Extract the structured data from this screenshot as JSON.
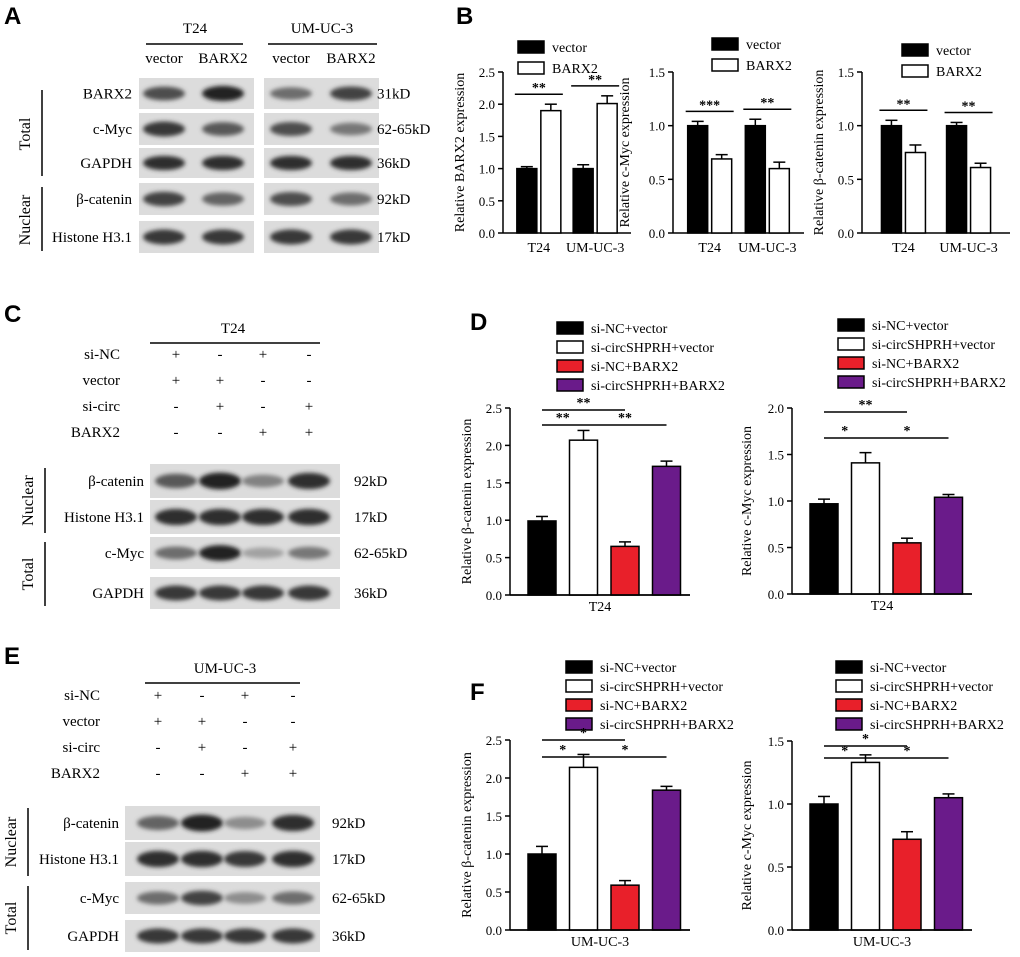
{
  "panels": {
    "A": {
      "letter": "A",
      "groups": [
        "T24",
        "UM-UC-3"
      ],
      "lanes": [
        "vector",
        "BARX2",
        "vector",
        "BARX2"
      ],
      "rows": [
        {
          "label": "BARX2",
          "size": "31kD",
          "intensity": [
            0.75,
            0.95,
            0.6,
            0.8
          ]
        },
        {
          "label": "c-Myc",
          "size": "62-65kD",
          "intensity": [
            0.85,
            0.7,
            0.75,
            0.55
          ]
        },
        {
          "label": "GAPDH",
          "size": "36kD",
          "intensity": [
            0.9,
            0.9,
            0.9,
            0.9
          ]
        },
        {
          "label": "β-catenin",
          "size": "92kD",
          "intensity": [
            0.8,
            0.65,
            0.75,
            0.6
          ]
        },
        {
          "label": "Histone H3.1",
          "size": "17kD",
          "intensity": [
            0.85,
            0.85,
            0.85,
            0.85
          ]
        }
      ],
      "side_labels": [
        "Total",
        "Nuclear"
      ]
    },
    "C": {
      "letter": "C",
      "group": "T24",
      "conditions": [
        {
          "label": "si-NC",
          "signs": [
            "+",
            "-",
            "+",
            "-"
          ]
        },
        {
          "label": "vector",
          "signs": [
            "+",
            "+",
            "-",
            "-"
          ]
        },
        {
          "label": "si-circ",
          "signs": [
            "-",
            "+",
            "-",
            "+"
          ]
        },
        {
          "label": "BARX2",
          "signs": [
            "-",
            "-",
            "+",
            "+"
          ]
        }
      ],
      "rows": [
        {
          "label": "β-catenin",
          "size": "92kD",
          "intensity": [
            0.7,
            0.95,
            0.5,
            0.9
          ]
        },
        {
          "label": "Histone H3.1",
          "size": "17kD",
          "intensity": [
            0.9,
            0.9,
            0.9,
            0.9
          ]
        },
        {
          "label": "c-Myc",
          "size": "62-65kD",
          "intensity": [
            0.6,
            0.95,
            0.35,
            0.55
          ]
        },
        {
          "label": "GAPDH",
          "size": "36kD",
          "intensity": [
            0.85,
            0.85,
            0.85,
            0.85
          ]
        }
      ],
      "side_labels": [
        "Nuclear",
        "Total"
      ]
    },
    "E": {
      "letter": "E",
      "group": "UM-UC-3",
      "conditions": [
        {
          "label": "si-NC",
          "signs": [
            "+",
            "-",
            "+",
            "-"
          ]
        },
        {
          "label": "vector",
          "signs": [
            "+",
            "+",
            "-",
            "-"
          ]
        },
        {
          "label": "si-circ",
          "signs": [
            "-",
            "+",
            "-",
            "+"
          ]
        },
        {
          "label": "BARX2",
          "signs": [
            "-",
            "-",
            "+",
            "+"
          ]
        }
      ],
      "rows": [
        {
          "label": "β-catenin",
          "size": "92kD",
          "intensity": [
            0.65,
            0.95,
            0.45,
            0.9
          ]
        },
        {
          "label": "Histone H3.1",
          "size": "17kD",
          "intensity": [
            0.9,
            0.9,
            0.85,
            0.9
          ]
        },
        {
          "label": "c-Myc",
          "size": "62-65kD",
          "intensity": [
            0.6,
            0.8,
            0.45,
            0.6
          ]
        },
        {
          "label": "GAPDH",
          "size": "36kD",
          "intensity": [
            0.85,
            0.85,
            0.85,
            0.85
          ]
        }
      ],
      "side_labels": [
        "Nuclear",
        "Total"
      ]
    },
    "B_letter": "B",
    "D_letter": "D",
    "F_letter": "F"
  },
  "colors": {
    "black": "#000000",
    "white": "#ffffff",
    "red": "#e8202a",
    "purple": "#6a1b8a"
  },
  "chart_data": [
    {
      "id": "B1",
      "type": "bar",
      "ylabel": "Relative BARX2 expression",
      "categories": [
        "T24",
        "UM-UC-3"
      ],
      "ylim": [
        0,
        2.5
      ],
      "yticks": [
        "0.0",
        "0.5",
        "1.0",
        "1.5",
        "2.0",
        "2.5"
      ],
      "series": [
        {
          "name": "vector",
          "values": [
            1.0,
            1.0
          ],
          "errors": [
            0.03,
            0.06
          ]
        },
        {
          "name": "BARX2",
          "values": [
            1.9,
            2.01
          ],
          "errors": [
            0.1,
            0.12
          ]
        }
      ],
      "significance": [
        {
          "text": "**"
        },
        {
          "text": "**"
        }
      ]
    },
    {
      "id": "B2",
      "type": "bar",
      "ylabel": "Relative c-Myc expression",
      "categories": [
        "T24",
        "UM-UC-3"
      ],
      "ylim": [
        0,
        1.5
      ],
      "yticks": [
        "0.0",
        "0.5",
        "1.0",
        "1.5"
      ],
      "series": [
        {
          "name": "vector",
          "values": [
            1.0,
            1.0
          ],
          "errors": [
            0.04,
            0.06
          ]
        },
        {
          "name": "BARX2",
          "values": [
            0.69,
            0.6
          ],
          "errors": [
            0.04,
            0.06
          ]
        }
      ],
      "significance": [
        {
          "text": "***"
        },
        {
          "text": "**"
        }
      ]
    },
    {
      "id": "B3",
      "type": "bar",
      "ylabel": "Relative β-catenin expression",
      "categories": [
        "T24",
        "UM-UC-3"
      ],
      "ylim": [
        0,
        1.5
      ],
      "yticks": [
        "0.0",
        "0.5",
        "1.0",
        "1.5"
      ],
      "series": [
        {
          "name": "vector",
          "values": [
            1.0,
            1.0
          ],
          "errors": [
            0.05,
            0.03
          ]
        },
        {
          "name": "BARX2",
          "values": [
            0.75,
            0.61
          ],
          "errors": [
            0.07,
            0.04
          ]
        }
      ],
      "significance": [
        {
          "text": "**"
        },
        {
          "text": "**"
        }
      ]
    },
    {
      "id": "D1",
      "type": "bar",
      "ylabel": "Relative β-catenin expression",
      "xlabel": "T24",
      "ylim": [
        0,
        2.5
      ],
      "yticks": [
        "0.0",
        "0.5",
        "1.0",
        "1.5",
        "2.0",
        "2.5"
      ],
      "series": [
        {
          "name": "si-NC+vector",
          "value": 0.99,
          "error": 0.06
        },
        {
          "name": "si-circSHPRH+vector",
          "value": 2.07,
          "error": 0.13
        },
        {
          "name": "si-NC+BARX2",
          "value": 0.65,
          "error": 0.06
        },
        {
          "name": "si-circSHPRH+BARX2",
          "value": 1.72,
          "error": 0.07
        }
      ],
      "significance": [
        {
          "text": "**",
          "from": 0,
          "to": 2
        },
        {
          "text": "**",
          "from": 0,
          "to": 1
        },
        {
          "text": "**",
          "from": 1,
          "to": 3
        }
      ]
    },
    {
      "id": "D2",
      "type": "bar",
      "ylabel": "Relative c-Myc expression",
      "xlabel": "T24",
      "ylim": [
        0,
        2.0
      ],
      "yticks": [
        "0.0",
        "0.5",
        "1.0",
        "1.5",
        "2.0"
      ],
      "series": [
        {
          "name": "si-NC+vector",
          "value": 0.97,
          "error": 0.05
        },
        {
          "name": "si-circSHPRH+vector",
          "value": 1.41,
          "error": 0.11
        },
        {
          "name": "si-NC+BARX2",
          "value": 0.55,
          "error": 0.05
        },
        {
          "name": "si-circSHPRH+BARX2",
          "value": 1.04,
          "error": 0.03
        }
      ],
      "significance": [
        {
          "text": "**",
          "from": 0,
          "to": 2
        },
        {
          "text": "*",
          "from": 0,
          "to": 1
        },
        {
          "text": "*",
          "from": 1,
          "to": 3
        }
      ]
    },
    {
      "id": "F1",
      "type": "bar",
      "ylabel": "Relative β-catenin expression",
      "xlabel": "UM-UC-3",
      "ylim": [
        0,
        2.5
      ],
      "yticks": [
        "0.0",
        "0.5",
        "1.0",
        "1.5",
        "2.0",
        "2.5"
      ],
      "series": [
        {
          "name": "si-NC+vector",
          "value": 1.0,
          "error": 0.1
        },
        {
          "name": "si-circSHPRH+vector",
          "value": 2.14,
          "error": 0.17
        },
        {
          "name": "si-NC+BARX2",
          "value": 0.59,
          "error": 0.06
        },
        {
          "name": "si-circSHPRH+BARX2",
          "value": 1.84,
          "error": 0.05
        }
      ],
      "significance": [
        {
          "text": "*",
          "from": 0,
          "to": 2
        },
        {
          "text": "*",
          "from": 0,
          "to": 1
        },
        {
          "text": "*",
          "from": 1,
          "to": 3
        }
      ]
    },
    {
      "id": "F2",
      "type": "bar",
      "ylabel": "Relative c-Myc expression",
      "xlabel": "UM-UC-3",
      "ylim": [
        0,
        1.5
      ],
      "yticks": [
        "0.0",
        "0.5",
        "1.0",
        "1.5"
      ],
      "series": [
        {
          "name": "si-NC+vector",
          "value": 1.0,
          "error": 0.06
        },
        {
          "name": "si-circSHPRH+vector",
          "value": 1.33,
          "error": 0.06
        },
        {
          "name": "si-NC+BARX2",
          "value": 0.72,
          "error": 0.06
        },
        {
          "name": "si-circSHPRH+BARX2",
          "value": 1.05,
          "error": 0.03
        }
      ],
      "significance": [
        {
          "text": "*",
          "from": 0,
          "to": 2
        },
        {
          "text": "*",
          "from": 0,
          "to": 1
        },
        {
          "text": "*",
          "from": 1,
          "to": 3
        }
      ]
    }
  ]
}
